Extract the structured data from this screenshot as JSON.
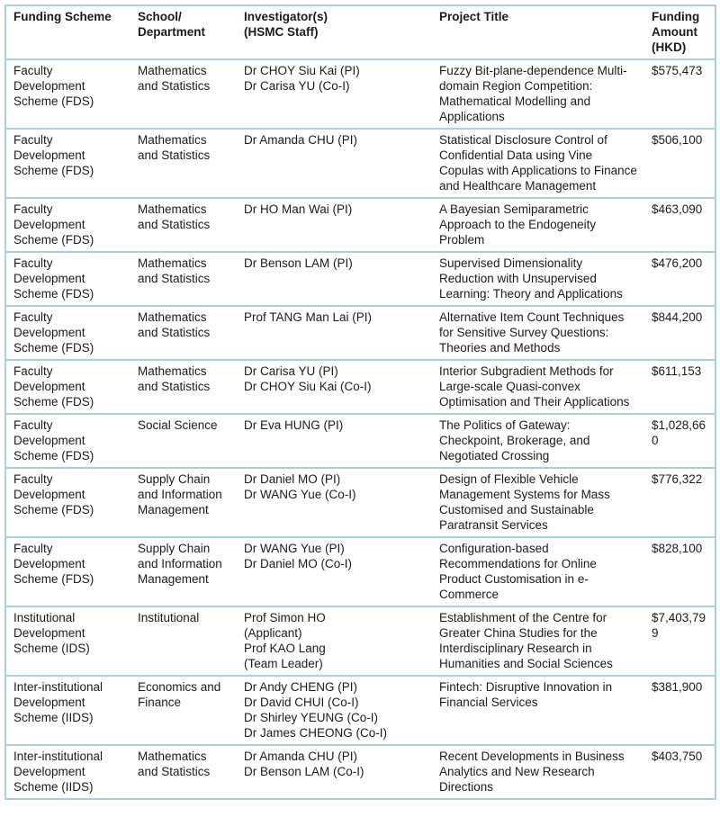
{
  "colors": {
    "table_border": "#a6d0e4",
    "text": "#1b1b1b",
    "background": "#ffffff"
  },
  "table": {
    "columns": [
      "Funding Scheme",
      "School/\nDepartment",
      "Investigator(s)\n(HSMC Staff)",
      "Project Title",
      "Funding\nAmount\n(HKD)"
    ],
    "rows": [
      {
        "scheme": "Faculty Development Scheme (FDS)",
        "department": "Mathematics and Statistics",
        "investigators": [
          "Dr CHOY Siu Kai (PI)",
          "Dr Carisa YU (Co-I)"
        ],
        "title": "Fuzzy Bit-plane-dependence Multi-domain Region Competition: Mathematical Modelling and Applications",
        "amount": "$575,473"
      },
      {
        "scheme": "Faculty Development Scheme (FDS)",
        "department": "Mathematics and Statistics",
        "investigators": [
          "Dr Amanda CHU (PI)"
        ],
        "title": "Statistical Disclosure Control of Confidential Data using Vine Copulas with Applications to Finance and Healthcare Management",
        "amount": "$506,100"
      },
      {
        "scheme": "Faculty Development Scheme (FDS)",
        "department": "Mathematics and Statistics",
        "investigators": [
          "Dr HO Man Wai (PI)"
        ],
        "title": "A Bayesian Semiparametric Approach to the Endogeneity Problem",
        "amount": "$463,090"
      },
      {
        "scheme": "Faculty Development Scheme (FDS)",
        "department": "Mathematics and Statistics",
        "investigators": [
          "Dr Benson LAM (PI)"
        ],
        "title": "Supervised Dimensionality Reduction with Unsupervised Learning: Theory and Applications",
        "amount": "$476,200"
      },
      {
        "scheme": "Faculty Development Scheme (FDS)",
        "department": "Mathematics and Statistics",
        "investigators": [
          "Prof TANG Man Lai (PI)"
        ],
        "title": "Alternative Item Count Techniques for Sensitive Survey Questions: Theories and Methods",
        "amount": "$844,200"
      },
      {
        "scheme": "Faculty Development Scheme (FDS)",
        "department": "Mathematics and Statistics",
        "investigators": [
          "Dr Carisa YU (PI)",
          "Dr CHOY Siu Kai (Co-I)"
        ],
        "title": "Interior Subgradient Methods for Large-scale Quasi-convex Optimisation and Their Applications",
        "amount": "$611,153"
      },
      {
        "scheme": "Faculty Development Scheme (FDS)",
        "department": "Social Science",
        "investigators": [
          "Dr Eva HUNG (PI)"
        ],
        "title": "The Politics of Gateway: Checkpoint, Brokerage, and Negotiated Crossing",
        "amount": "$1,028,660"
      },
      {
        "scheme": "Faculty Development Scheme (FDS)",
        "department": "Supply Chain and Information Management",
        "investigators": [
          "Dr Daniel MO (PI)",
          "Dr WANG Yue (Co-I)"
        ],
        "title": "Design of Flexible Vehicle Management Systems for Mass Customised and Sustainable Paratransit Services",
        "amount": "$776,322"
      },
      {
        "scheme": "Faculty Development Scheme (FDS)",
        "department": "Supply Chain and Information Management",
        "investigators": [
          "Dr WANG Yue (PI)",
          "Dr Daniel MO (Co-I)"
        ],
        "title": "Configuration-based Recommendations for Online Product Customisation in e-Commerce",
        "amount": "$828,100"
      },
      {
        "scheme": "Institutional Development Scheme (IDS)",
        "department": "Institutional",
        "investigators": [
          "Prof Simon HO",
          "(Applicant)",
          "Prof KAO Lang",
          "(Team Leader)"
        ],
        "title": "Establishment of the Centre for Greater China Studies for the Interdisciplinary Research in Humanities and Social Sciences",
        "amount": "$7,403,799"
      },
      {
        "scheme": "Inter-institutional Development Scheme (IIDS)",
        "department": "Economics and Finance",
        "investigators": [
          "Dr Andy CHENG (PI)",
          "Dr David CHUI (Co-I)",
          "Dr Shirley YEUNG (Co-I)",
          "Dr James CHEONG (Co-I)"
        ],
        "title": "Fintech: Disruptive Innovation in Financial Services",
        "amount": "$381,900"
      },
      {
        "scheme": "Inter-institutional Development Scheme (IIDS)",
        "department": "Mathematics and Statistics",
        "investigators": [
          "Dr Amanda CHU (PI)",
          "Dr Benson LAM (Co-I)"
        ],
        "title": "Recent Developments in Business Analytics and New Research Directions",
        "amount": "$403,750"
      }
    ]
  }
}
